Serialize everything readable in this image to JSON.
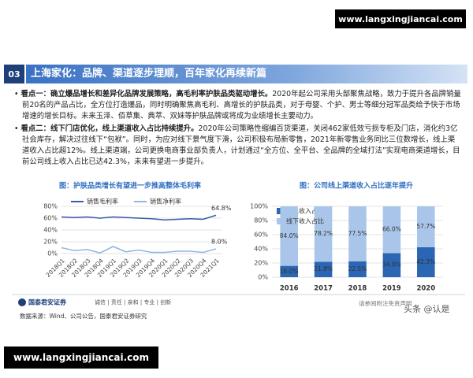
{
  "watermark_top": "www.langxingjiancai.com",
  "watermark_bottom": "www.langxingjiancai.com",
  "header": {
    "number": "03",
    "title": "上海家化：品牌、渠道逐步理顺，百年家化再续新篇"
  },
  "bullets": [
    {
      "lead": "看点一：确立爆品增长和差异化品牌发展策略，高毛利率护肤品类驱动增长。",
      "text": "2020年起公司采用头部聚焦战略，致力于提升各品牌销量前20名的产品占比，全方位打造爆品，同时明确聚焦高毛利、高增长的护肤品类，对于母婴、个护、男士等细分冠军品类给予快于市场增速的增长目标。未来玉泽、佰草集、典萃、双妹等护肤品牌或将成为业绩增长主要动力。"
    },
    {
      "lead": "看点二：线下门店优化，线上渠道收入占比持续提升。",
      "text": "2020年公司策略性缩编百货渠道，关闭462家低效亏损专柜及门店，消化约3亿社会库存，解决过往线下“包袱”。同时，为应对线下景气度下滑，公司积极布局新零售，2021年新零售业务同比三位数增长，线上渠道收入占比超12%。线上渠道端，公司更换电商事业部负责人，计划通过“全方位、全平台、全品牌的全域打法”实现电商渠道增长，目前公司线上收入占比已达42.3%，未来有望进一步提升。"
    }
  ],
  "chart_data": [
    {
      "type": "line",
      "title": "图：护肤品类增长有望进一步推高整体毛利率",
      "categories": [
        "2018Q1",
        "2018Q2",
        "2018Q3",
        "2018Q4",
        "2019Q1",
        "2019Q2",
        "2019Q3",
        "2019Q4",
        "2020Q1",
        "2020Q2",
        "2020Q3",
        "2020Q4",
        "2021Q1"
      ],
      "series": [
        {
          "name": "销售毛利率",
          "color": "#3a5ca8",
          "values": [
            62,
            61,
            62,
            60,
            62,
            61,
            60,
            59,
            57,
            58,
            59,
            58,
            64.8
          ],
          "end_label": "64.8%"
        },
        {
          "name": "销售净利率",
          "color": "#92b6e3",
          "values": [
            10,
            5,
            7,
            1,
            12,
            3,
            6,
            2,
            2,
            4,
            4,
            2,
            8.0
          ],
          "end_label": "8.0%"
        }
      ],
      "ylim": [
        0,
        80
      ],
      "yticks": [
        {
          "value": 0,
          "label": "0%"
        },
        {
          "value": 20,
          "label": "20%"
        },
        {
          "value": 40,
          "label": "40%"
        },
        {
          "value": 60,
          "label": "60%"
        },
        {
          "value": 80,
          "label": "80%"
        }
      ]
    },
    {
      "type": "bar",
      "stacked": true,
      "title": "图：公司线上渠道收入占比逐年提升",
      "categories": [
        "2016",
        "2017",
        "2018",
        "2019",
        "2020"
      ],
      "series": [
        {
          "name": "线上收入占比",
          "color": "#2a66b3",
          "values": [
            16.0,
            21.8,
            22.5,
            34.0,
            42.3
          ],
          "value_labels": [
            "16.0%",
            "21.8%",
            "22.5%",
            "34.0%",
            "42.3%"
          ]
        },
        {
          "name": "线下收入占比",
          "color": "#a9c6ea",
          "values": [
            84.0,
            78.2,
            77.5,
            66.0,
            57.7
          ],
          "value_labels": [
            "84.0%",
            "78.2%",
            "77.5%",
            "66.0%",
            "57.7%"
          ]
        }
      ],
      "ylim": [
        0,
        100
      ],
      "yticks": [
        {
          "value": 0,
          "label": "0%"
        },
        {
          "value": 20,
          "label": "20%"
        },
        {
          "value": 40,
          "label": "40%"
        },
        {
          "value": 60,
          "label": "60%"
        },
        {
          "value": 80,
          "label": "80%"
        },
        {
          "value": 100,
          "label": "100%"
        }
      ]
    }
  ],
  "footer": {
    "logo": "国泰君安证券",
    "slogan": "诚信 | 责任 | 亲和 | 专业 | 创新",
    "source": "数据来源：Wind、公司公告，国泰君安证券研究",
    "disclaimer": "请参阅附注免责声明",
    "credit": "头条 @认是"
  }
}
